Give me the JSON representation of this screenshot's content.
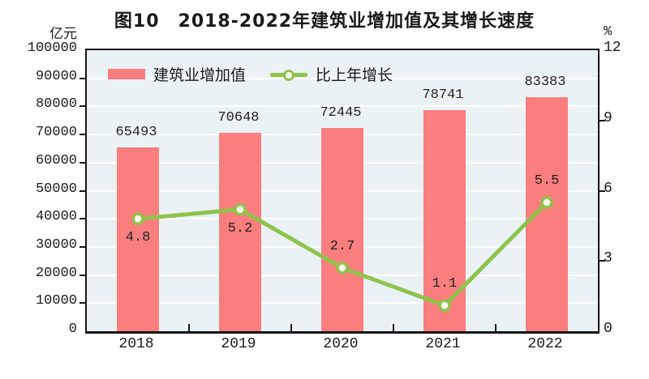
{
  "title": "图10　2018-2022年建筑业增加值及其增长速度",
  "left_axis_unit": "亿元",
  "right_axis_unit": "%",
  "legend": {
    "bar_label": "建筑业增加值",
    "line_label": "比上年增长"
  },
  "colors": {
    "bar": "#fa7e7e",
    "line": "#8fc34a",
    "marker_fill": "#fffef4",
    "plot_background": "#ebf2f6",
    "gridline": "#ffffff",
    "axis": "#151515"
  },
  "chart_data": {
    "type": "bar",
    "subtype": "combo-bar-line",
    "categories": [
      "2018",
      "2019",
      "2020",
      "2021",
      "2022"
    ],
    "series": [
      {
        "name": "建筑业增加值",
        "type": "bar",
        "axis": "left",
        "unit": "亿元",
        "values": [
          65493,
          70648,
          72445,
          78741,
          83383
        ]
      },
      {
        "name": "比上年增长",
        "type": "line",
        "axis": "right",
        "unit": "%",
        "values": [
          4.8,
          5.2,
          2.7,
          1.1,
          5.5
        ],
        "label_position": [
          "below",
          "below",
          "above",
          "above",
          "above"
        ]
      }
    ],
    "left_axis": {
      "min": 0,
      "max": 100000,
      "step": 10000
    },
    "right_axis": {
      "min": 0,
      "max": 12,
      "step": 3
    },
    "grid": "horizontal-white",
    "legend_position": "top-left-inside"
  }
}
